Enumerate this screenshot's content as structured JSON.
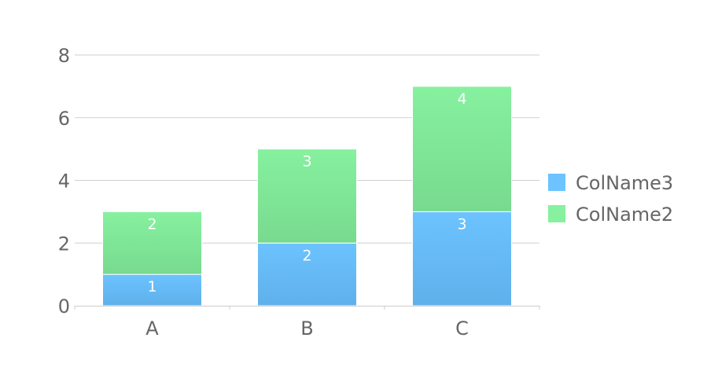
{
  "colors": {
    "ColName3_top": "#6cc3ff",
    "ColName3_bottom": "#5fb0ea",
    "ColName2_top": "#86f19f",
    "ColName2_bottom": "#78da8f",
    "grid": "#cfcfcf",
    "axis": "#cccccc",
    "text": "#666666",
    "label": "#ffffff"
  },
  "chart_data": {
    "type": "bar",
    "stacked": true,
    "categories": [
      "A",
      "B",
      "C"
    ],
    "series": [
      {
        "name": "ColName3",
        "values": [
          1,
          2,
          3
        ]
      },
      {
        "name": "ColName2",
        "values": [
          2,
          3,
          4
        ]
      }
    ],
    "ylim": [
      0,
      8
    ],
    "yticks": [
      0,
      2,
      4,
      6,
      8
    ],
    "grid": true,
    "legend": "right"
  }
}
